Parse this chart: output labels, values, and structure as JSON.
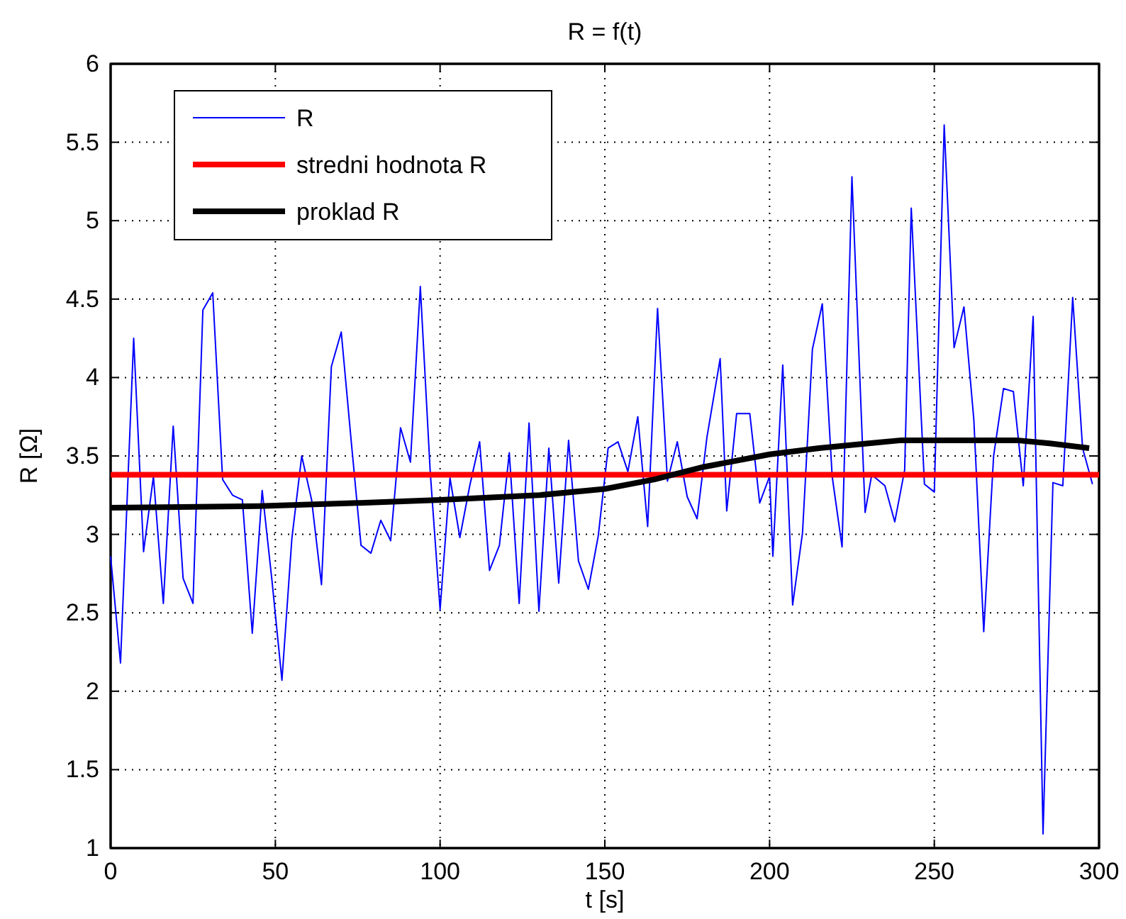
{
  "chart_data": {
    "type": "line",
    "title": "R = f(t)",
    "xlabel": "t [s]",
    "ylabel": "R [Ω]",
    "xlim": [
      0,
      300
    ],
    "xticks": [
      0,
      50,
      100,
      150,
      200,
      250,
      300
    ],
    "ylim": [
      1,
      6
    ],
    "yticks": [
      1,
      1.5,
      2,
      2.5,
      3,
      3.5,
      4,
      4.5,
      5,
      5.5,
      6
    ],
    "grid": true,
    "legend": "top left",
    "line_style": "solid",
    "marker": "none",
    "series": [
      {
        "name": "R",
        "color": "#0000ff",
        "x": [
          0,
          3,
          7,
          10,
          13,
          16,
          19,
          22,
          25,
          28,
          31,
          34,
          37,
          40,
          43,
          46,
          49,
          52,
          55,
          58,
          61,
          64,
          67,
          70,
          73,
          76,
          79,
          82,
          85,
          88,
          91,
          94,
          97,
          100,
          103,
          106,
          109,
          112,
          115,
          118,
          121,
          124,
          127,
          130,
          133,
          136,
          139,
          142,
          145,
          148,
          151,
          154,
          157,
          160,
          163,
          166,
          169,
          172,
          175,
          178,
          181,
          185,
          187,
          190,
          194,
          197,
          200,
          201,
          204,
          207,
          210,
          213,
          216,
          219,
          222,
          225,
          229,
          231,
          235,
          238,
          241,
          243,
          247,
          250,
          253,
          256,
          259,
          262,
          265,
          268,
          271,
          274,
          277,
          280,
          283,
          286,
          289,
          292,
          295,
          298
        ],
        "values": [
          2.86,
          2.18,
          4.25,
          2.89,
          3.37,
          2.56,
          3.69,
          2.72,
          2.56,
          4.43,
          4.54,
          3.35,
          3.25,
          3.22,
          2.37,
          3.28,
          2.7,
          2.07,
          2.97,
          3.5,
          3.22,
          2.68,
          4.07,
          4.29,
          3.6,
          2.93,
          2.88,
          3.09,
          2.96,
          3.68,
          3.46,
          4.58,
          3.4,
          2.52,
          3.36,
          2.98,
          3.31,
          3.59,
          2.77,
          2.93,
          3.52,
          2.56,
          3.71,
          2.51,
          3.55,
          2.69,
          3.6,
          2.83,
          2.65,
          2.99,
          3.55,
          3.59,
          3.4,
          3.75,
          3.05,
          4.44,
          3.34,
          3.59,
          3.24,
          3.1,
          3.62,
          4.12,
          3.15,
          3.77,
          3.77,
          3.2,
          3.37,
          2.86,
          4.08,
          2.55,
          3.01,
          4.18,
          4.47,
          3.37,
          2.92,
          5.28,
          3.14,
          3.38,
          3.31,
          3.08,
          3.41,
          5.08,
          3.32,
          3.27,
          5.61,
          4.19,
          4.45,
          3.73,
          2.38,
          3.5,
          3.93,
          3.91,
          3.31,
          4.39,
          1.09,
          3.33,
          3.31,
          4.51,
          3.55,
          3.32
        ]
      },
      {
        "name": "stredni hodnota R",
        "color": "#ff0000",
        "x": [
          0,
          300
        ],
        "values": [
          3.38,
          3.38
        ]
      },
      {
        "name": "proklad R",
        "color": "#000000",
        "x": [
          0,
          45,
          75,
          100,
          130,
          150,
          165,
          180,
          200,
          215,
          230,
          240,
          275,
          285,
          297
        ],
        "values": [
          3.17,
          3.18,
          3.2,
          3.22,
          3.25,
          3.29,
          3.35,
          3.43,
          3.51,
          3.55,
          3.58,
          3.6,
          3.6,
          3.58,
          3.55
        ]
      }
    ]
  }
}
